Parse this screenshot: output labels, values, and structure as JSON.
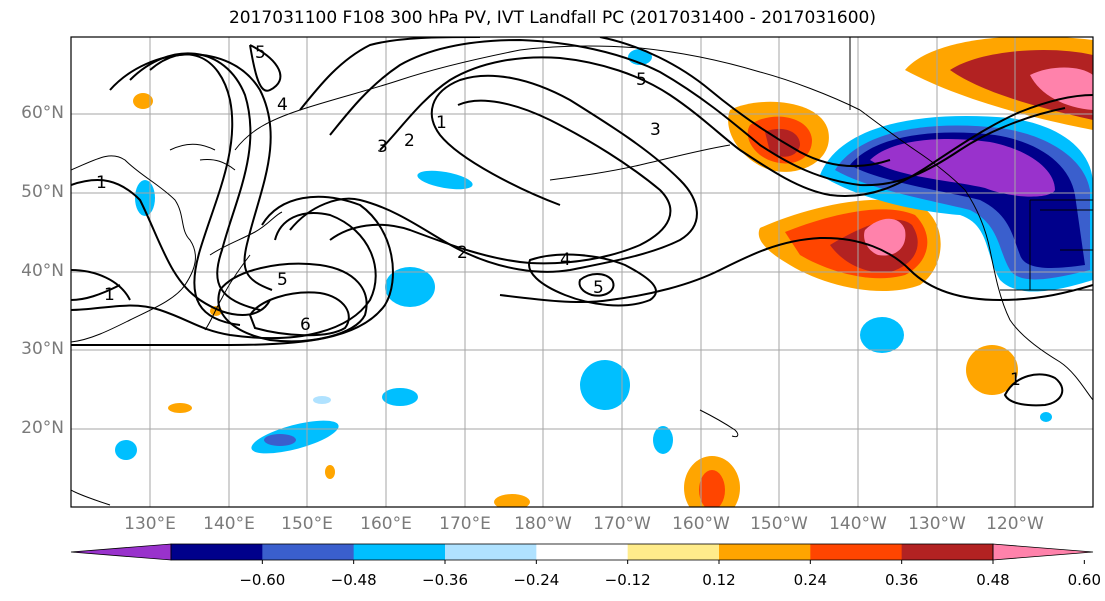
{
  "title": "2017031100 F108 300 hPa PV, IVT Landfall PC (2017031400 - 2017031600)",
  "lat_labels": [
    "60°N",
    "50°N",
    "40°N",
    "30°N",
    "20°N"
  ],
  "lon_labels": [
    "130°E",
    "140°E",
    "150°E",
    "160°E",
    "170°E",
    "180°W",
    "170°W",
    "160°W",
    "150°W",
    "140°W",
    "130°W",
    "120°W"
  ],
  "contour_labels": [
    "5",
    "4",
    "3",
    "2",
    "1",
    "5",
    "6",
    "1",
    "2",
    "4",
    "5",
    "1",
    "3",
    "5",
    "1"
  ],
  "colorbar": {
    "tick_labels": [
      "−0.60",
      "−0.48",
      "−0.36",
      "−0.24",
      "−0.12",
      "0.12",
      "0.24",
      "0.36",
      "0.48",
      "0.60"
    ],
    "colors": [
      "#9932cc",
      "#00008b",
      "#3a5fcd",
      "#00bfff",
      "#b0e2ff",
      "#ffffff",
      "#ffec8b",
      "#ffa500",
      "#ff4500",
      "#b22222",
      "#ff82ab"
    ]
  }
}
